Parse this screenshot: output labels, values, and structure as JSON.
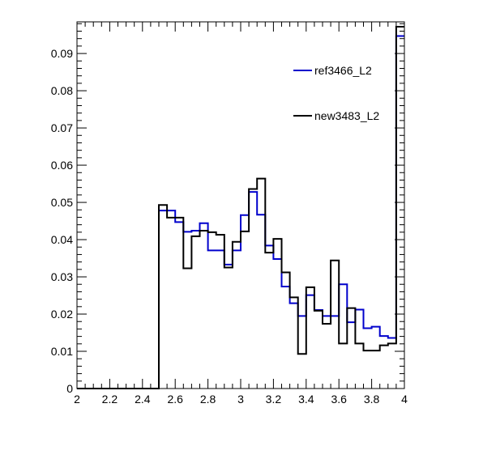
{
  "chart_data": {
    "type": "line",
    "title": "",
    "xlabel": "",
    "ylabel": "",
    "xlim": [
      2,
      4
    ],
    "ylim": [
      0,
      0.0985
    ],
    "bin_edges": [
      2.0,
      2.05,
      2.1,
      2.15,
      2.2,
      2.25,
      2.3,
      2.35,
      2.4,
      2.45,
      2.5,
      2.55,
      2.6,
      2.65,
      2.7,
      2.75,
      2.8,
      2.85,
      2.9,
      2.95,
      3.0,
      3.05,
      3.1,
      3.15,
      3.2,
      3.25,
      3.3,
      3.35,
      3.4,
      3.45,
      3.5,
      3.55,
      3.6,
      3.65,
      3.7,
      3.75,
      3.8,
      3.85,
      3.9,
      3.95,
      4.0
    ],
    "x_ticks": [
      {
        "value": 2.0,
        "label": "2"
      },
      {
        "value": 2.2,
        "label": "2.2"
      },
      {
        "value": 2.4,
        "label": "2.4"
      },
      {
        "value": 2.6,
        "label": "2.6"
      },
      {
        "value": 2.8,
        "label": "2.8"
      },
      {
        "value": 3.0,
        "label": "3"
      },
      {
        "value": 3.2,
        "label": "3.2"
      },
      {
        "value": 3.4,
        "label": "3.4"
      },
      {
        "value": 3.6,
        "label": "3.6"
      },
      {
        "value": 3.8,
        "label": "3.8"
      },
      {
        "value": 4.0,
        "label": "4"
      }
    ],
    "y_ticks": [
      {
        "value": 0,
        "label": "0"
      },
      {
        "value": 0.01,
        "label": "0.01"
      },
      {
        "value": 0.02,
        "label": "0.02"
      },
      {
        "value": 0.03,
        "label": "0.03"
      },
      {
        "value": 0.04,
        "label": "0.04"
      },
      {
        "value": 0.05,
        "label": "0.05"
      },
      {
        "value": 0.06,
        "label": "0.06"
      },
      {
        "value": 0.07,
        "label": "0.07"
      },
      {
        "value": 0.08,
        "label": "0.08"
      },
      {
        "value": 0.09,
        "label": "0.09"
      }
    ],
    "grid": false,
    "legend_position": "top-right",
    "series": [
      {
        "name": "ref3466_L2",
        "color": "#0000cc",
        "values": [
          0,
          0,
          0,
          0,
          0,
          0,
          0,
          0,
          0,
          0,
          0.0478,
          0.0478,
          0.0447,
          0.0421,
          0.0424,
          0.0444,
          0.0371,
          0.0371,
          0.0333,
          0.0371,
          0.0466,
          0.0528,
          0.0467,
          0.0384,
          0.0348,
          0.0274,
          0.0229,
          0.0195,
          0.0251,
          0.0211,
          0.0195,
          0.0195,
          0.028,
          0.0178,
          0.0212,
          0.0162,
          0.0166,
          0.0141,
          0.0136,
          0.0947
        ]
      },
      {
        "name": "new3483_L2",
        "color": "#000000",
        "values": [
          0,
          0,
          0,
          0,
          0,
          0,
          0,
          0,
          0,
          0,
          0.0493,
          0.0459,
          0.0459,
          0.0323,
          0.0409,
          0.0424,
          0.042,
          0.0413,
          0.0325,
          0.0394,
          0.0422,
          0.0536,
          0.0564,
          0.0365,
          0.0402,
          0.0312,
          0.0245,
          0.0093,
          0.0272,
          0.0209,
          0.0174,
          0.0344,
          0.0121,
          0.0216,
          0.0121,
          0.0102,
          0.0102,
          0.0116,
          0.0121,
          0.0972
        ]
      }
    ]
  }
}
